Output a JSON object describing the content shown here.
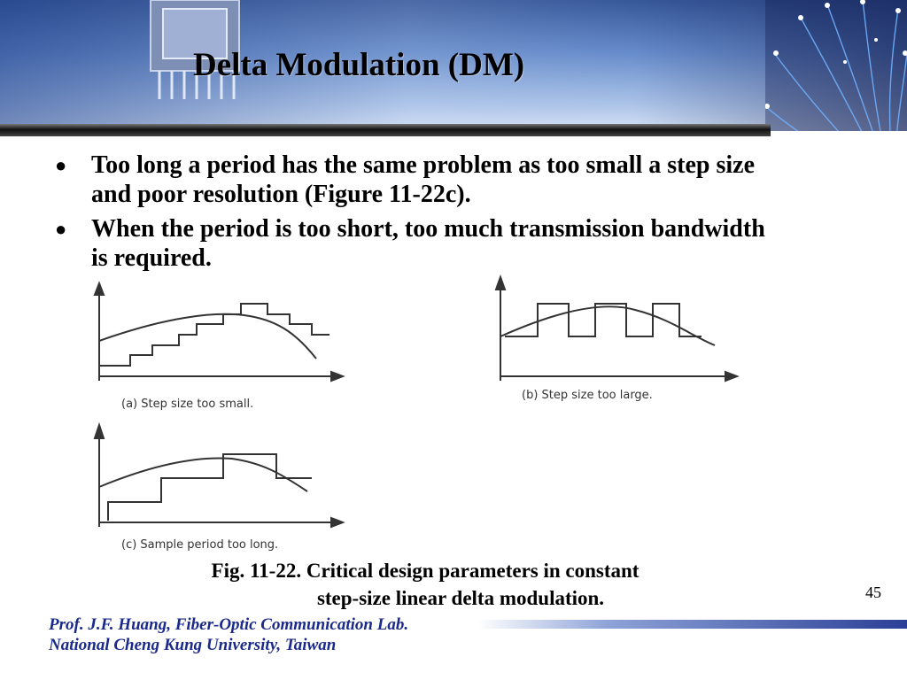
{
  "slide": {
    "title": "Delta Modulation (DM)",
    "bullets": [
      "Too long a period has the same problem as too small a step size and poor resolution (Figure 11-22c).",
      "When the period is too short, too much transmission bandwidth is required."
    ],
    "figure": {
      "panels": [
        {
          "id": "a",
          "label": "(a)  Step size too small."
        },
        {
          "id": "b",
          "label": "(b)  Step size too large."
        },
        {
          "id": "c",
          "label": "(c)  Sample period too long."
        }
      ]
    },
    "caption_line1": "Fig. 11-22. Critical design parameters in constant",
    "caption_line2": "step-size linear delta modulation.",
    "page_number": "45",
    "footer_line1": "Prof. J.F. Huang, Fiber-Optic Communication Lab.",
    "footer_line2": "National Cheng Kung University, Taiwan"
  },
  "colors": {
    "header_blue": "#3b5ea8",
    "footer_text": "#1a2a8c",
    "footer_bar": "#2a3f96"
  }
}
